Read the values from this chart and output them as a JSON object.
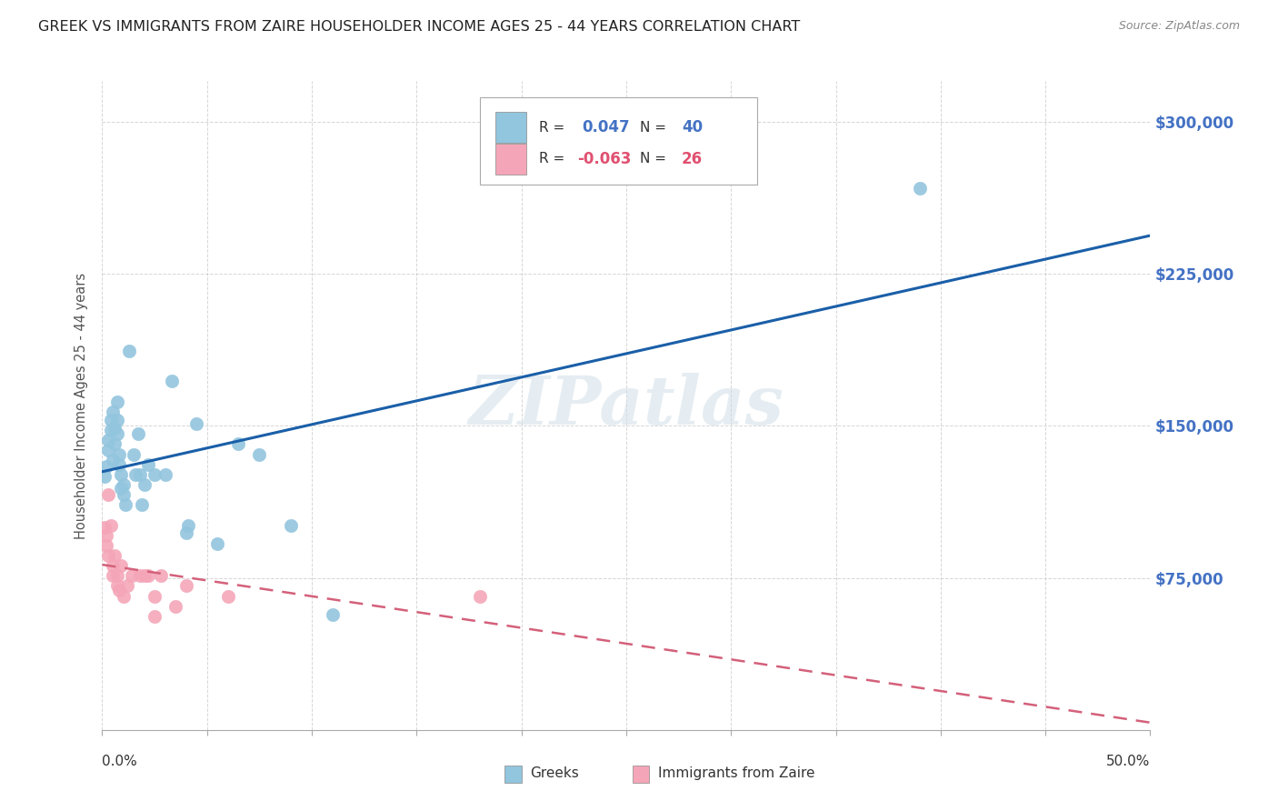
{
  "title": "GREEK VS IMMIGRANTS FROM ZAIRE HOUSEHOLDER INCOME AGES 25 - 44 YEARS CORRELATION CHART",
  "source": "Source: ZipAtlas.com",
  "ylabel": "Householder Income Ages 25 - 44 years",
  "ytick_labels": [
    "$75,000",
    "$150,000",
    "$225,000",
    "$300,000"
  ],
  "ytick_values": [
    75000,
    150000,
    225000,
    300000
  ],
  "ylim": [
    0,
    320000
  ],
  "xlim": [
    0.0,
    0.5
  ],
  "watermark": "ZIPatlas",
  "blue_color": "#92c5de",
  "pink_color": "#f4a6b8",
  "trend_blue": "#1a5fa8",
  "trend_pink": "#d4607a",
  "axis_label_color": "#4472c4",
  "greek_scatter_x": [
    0.001,
    0.002,
    0.003,
    0.003,
    0.004,
    0.004,
    0.005,
    0.005,
    0.006,
    0.006,
    0.007,
    0.007,
    0.007,
    0.008,
    0.008,
    0.009,
    0.009,
    0.01,
    0.01,
    0.011,
    0.013,
    0.015,
    0.016,
    0.017,
    0.018,
    0.019,
    0.02,
    0.022,
    0.025,
    0.03,
    0.033,
    0.04,
    0.041,
    0.045,
    0.055,
    0.065,
    0.075,
    0.09,
    0.11,
    0.39
  ],
  "greek_scatter_y": [
    125000,
    130000,
    138000,
    143000,
    148000,
    153000,
    133000,
    157000,
    141000,
    149000,
    153000,
    146000,
    162000,
    131000,
    136000,
    119000,
    126000,
    121000,
    116000,
    111000,
    187000,
    136000,
    126000,
    146000,
    126000,
    111000,
    121000,
    131000,
    126000,
    126000,
    172000,
    97000,
    101000,
    151000,
    92000,
    141000,
    136000,
    101000,
    57000,
    267000
  ],
  "zaire_scatter_x": [
    0.001,
    0.002,
    0.002,
    0.003,
    0.003,
    0.004,
    0.005,
    0.005,
    0.006,
    0.007,
    0.007,
    0.008,
    0.009,
    0.01,
    0.012,
    0.014,
    0.018,
    0.02,
    0.022,
    0.025,
    0.025,
    0.028,
    0.035,
    0.04,
    0.06,
    0.18
  ],
  "zaire_scatter_y": [
    100000,
    96000,
    91000,
    86000,
    116000,
    101000,
    81000,
    76000,
    86000,
    76000,
    71000,
    69000,
    81000,
    66000,
    71000,
    76000,
    76000,
    76000,
    76000,
    56000,
    66000,
    76000,
    61000,
    71000,
    66000,
    66000
  ]
}
